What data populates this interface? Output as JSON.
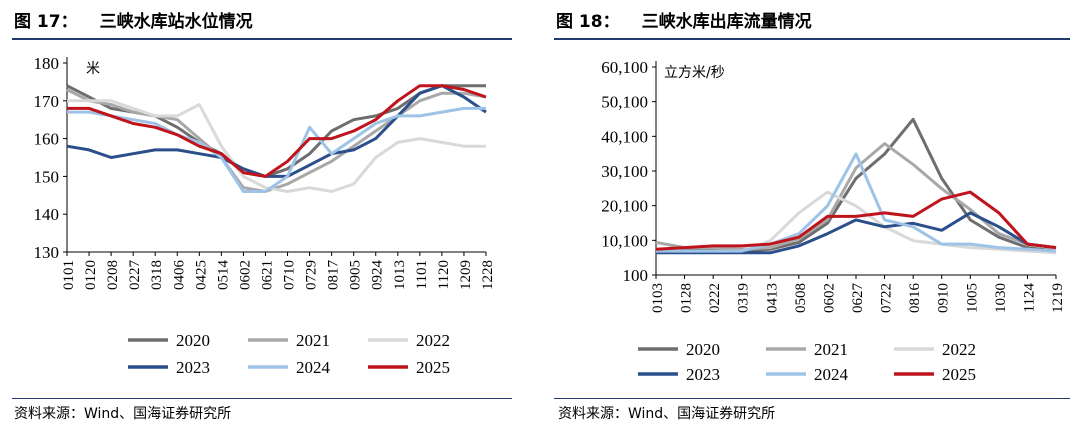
{
  "figure17": {
    "number": "图 17：",
    "title": "三峡水库站水位情况",
    "source": "资料来源：Wind、国海证券研究所"
  },
  "figure18": {
    "number": "图 18：",
    "title": "三峡水库出库流量情况",
    "source": "资料来源：Wind、国海证券研究所"
  },
  "colors": {
    "2020": "#6e6e6e",
    "2021": "#a8a8a8",
    "2022": "#d9d9d9",
    "2023": "#2a4f8a",
    "2024": "#9ec3e6",
    "2025": "#c0141c"
  },
  "chart_data": [
    {
      "type": "line",
      "unit_label": "米",
      "ylim": [
        130,
        180
      ],
      "yticks": [
        130,
        140,
        150,
        160,
        170,
        180
      ],
      "categories": [
        "0101",
        "0120",
        "0208",
        "0227",
        "0318",
        "0406",
        "0425",
        "0514",
        "0602",
        "0621",
        "0710",
        "0729",
        "0817",
        "0905",
        "0924",
        "1013",
        "1101",
        "1120",
        "1209",
        "1228"
      ],
      "legend_position": "bottom",
      "series": [
        {
          "name": "2020",
          "values": [
            174,
            171,
            168,
            167,
            166,
            163,
            159,
            156,
            151,
            150,
            152,
            156,
            162,
            165,
            166,
            168,
            172,
            174,
            174,
            174
          ]
        },
        {
          "name": "2021",
          "values": [
            173,
            170,
            169,
            167,
            166,
            165,
            160,
            155,
            147,
            146,
            148,
            151,
            154,
            158,
            162,
            166,
            170,
            172,
            172,
            171
          ]
        },
        {
          "name": "2022",
          "values": [
            170,
            170,
            170,
            168,
            166,
            166,
            169,
            158,
            150,
            147,
            146,
            147,
            146,
            148,
            155,
            159,
            160,
            159,
            158,
            158
          ]
        },
        {
          "name": "2023",
          "values": [
            158,
            157,
            155,
            156,
            157,
            157,
            156,
            155,
            152,
            150,
            150,
            153,
            156,
            157,
            160,
            166,
            172,
            174,
            171,
            167
          ]
        },
        {
          "name": "2024",
          "values": [
            167,
            167,
            166,
            165,
            164,
            161,
            159,
            155,
            146,
            146,
            150,
            163,
            156,
            160,
            164,
            166,
            166,
            167,
            168,
            168
          ]
        },
        {
          "name": "2025",
          "values": [
            168,
            168,
            166,
            164,
            163,
            161,
            158,
            156,
            151,
            150,
            154,
            160,
            160,
            162,
            165,
            170,
            174,
            174,
            173,
            171
          ]
        }
      ]
    },
    {
      "type": "line",
      "unit_label": "立方米/秒",
      "ylim": [
        100,
        60100
      ],
      "yticks": [
        100,
        10100,
        20100,
        30100,
        40100,
        50100,
        60100
      ],
      "ytick_labels": [
        "100",
        "10,100",
        "20,100",
        "30,100",
        "40,100",
        "50,100",
        "60,100"
      ],
      "categories": [
        "0103",
        "0128",
        "0222",
        "0319",
        "0413",
        "0508",
        "0602",
        "0627",
        "0722",
        "0816",
        "0910",
        "1005",
        "1030",
        "1124",
        "1219"
      ],
      "legend_position": "bottom",
      "series": [
        {
          "name": "2020",
          "values": [
            7000,
            7500,
            7200,
            7000,
            7500,
            9500,
            15000,
            28000,
            35000,
            45000,
            28000,
            16000,
            11000,
            8000,
            7000
          ]
        },
        {
          "name": "2021",
          "values": [
            9500,
            8000,
            8000,
            7500,
            8000,
            10500,
            16000,
            31000,
            38000,
            32000,
            25000,
            19000,
            12000,
            9000,
            8000
          ]
        },
        {
          "name": "2022",
          "values": [
            7500,
            7000,
            6500,
            7000,
            10000,
            18000,
            24000,
            20000,
            14000,
            10000,
            9000,
            8000,
            7500,
            7000,
            6500
          ]
        },
        {
          "name": "2023",
          "values": [
            6500,
            6500,
            6500,
            6500,
            6500,
            8500,
            12000,
            16000,
            14000,
            15000,
            13000,
            18000,
            14000,
            9000,
            8000
          ]
        },
        {
          "name": "2024",
          "values": [
            7000,
            7000,
            7000,
            7000,
            9000,
            12000,
            20000,
            35000,
            16000,
            14000,
            9000,
            9000,
            8000,
            7500,
            7000
          ]
        },
        {
          "name": "2025",
          "values": [
            7500,
            8000,
            8500,
            8500,
            9000,
            11000,
            17000,
            17000,
            18000,
            17000,
            22000,
            24000,
            18000,
            9000,
            8000
          ]
        }
      ]
    }
  ]
}
